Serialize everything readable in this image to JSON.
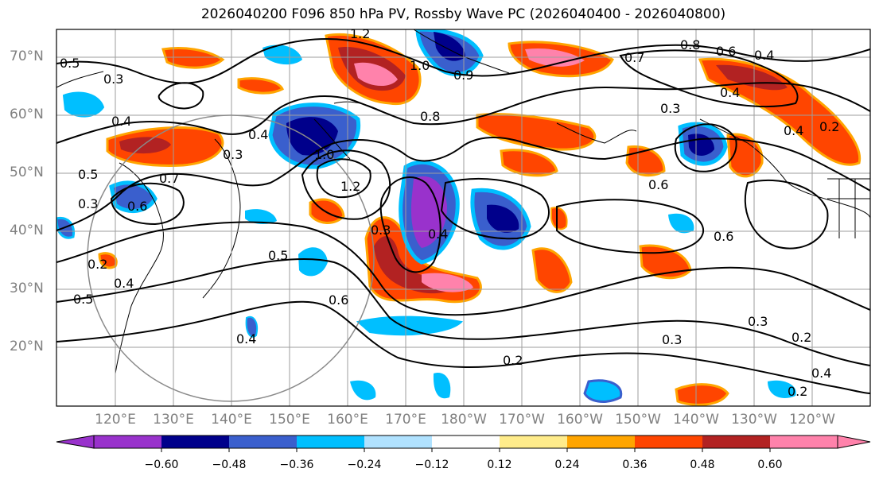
{
  "title": "2026040200 F096 850 hPa PV, Rossby Wave PC (2026040400 - 2026040800)",
  "lat_labels": [
    "70°N",
    "60°N",
    "50°N",
    "40°N",
    "30°N",
    "20°N"
  ],
  "lon_labels": [
    "120°E",
    "130°E",
    "140°E",
    "150°E",
    "160°E",
    "170°E",
    "180°W",
    "170°W",
    "160°W",
    "150°W",
    "140°W",
    "130°W",
    "120°W"
  ],
  "colorbar": {
    "ticks": [
      "−0.60",
      "−0.48",
      "−0.36",
      "−0.24",
      "−0.12",
      "0.12",
      "0.24",
      "0.36",
      "0.48",
      "0.60"
    ],
    "colors": [
      "#9932cc",
      "#00008b",
      "#3a5fcd",
      "#00bfff",
      "#b0e2ff",
      "#ffffff",
      "#ffec8b",
      "#ffa500",
      "#ff4500",
      "#b22222",
      "#ff82ab"
    ]
  },
  "contour_labels": [
    {
      "text": "0.5"
    },
    {
      "text": "0.3"
    },
    {
      "text": "0.4"
    },
    {
      "text": "0.3"
    },
    {
      "text": "0.4"
    },
    {
      "text": "0.5"
    },
    {
      "text": "0.7"
    },
    {
      "text": "0.3"
    },
    {
      "text": "0.6"
    },
    {
      "text": "1.0"
    },
    {
      "text": "1.2"
    },
    {
      "text": "1.2"
    },
    {
      "text": "1.0"
    },
    {
      "text": "0.9"
    },
    {
      "text": "0.8"
    },
    {
      "text": "0.8"
    },
    {
      "text": "0.7"
    },
    {
      "text": "0.6"
    },
    {
      "text": "0.4"
    },
    {
      "text": "0.4"
    },
    {
      "text": "0.3"
    },
    {
      "text": "0.6"
    },
    {
      "text": "0.6"
    },
    {
      "text": "0.5"
    },
    {
      "text": "0.6"
    },
    {
      "text": "0.3"
    },
    {
      "text": "0.4"
    },
    {
      "text": "0.2"
    },
    {
      "text": "0.4"
    },
    {
      "text": "0.5"
    },
    {
      "text": "0.4"
    },
    {
      "text": "0.2"
    },
    {
      "text": "0.3"
    },
    {
      "text": "0.3"
    },
    {
      "text": "0.2"
    },
    {
      "text": "0.4"
    },
    {
      "text": "0.2"
    },
    {
      "text": "0.4"
    },
    {
      "text": "0.2"
    }
  ]
}
